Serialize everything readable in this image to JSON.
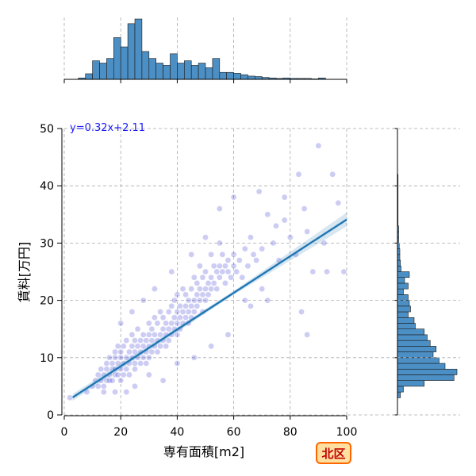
{
  "chart_data": {
    "type": "scatter",
    "xlabel": "専有面積[m2]",
    "ylabel": "賃料[万円]",
    "xlim": [
      0,
      100
    ],
    "ylim": [
      0,
      50
    ],
    "x_ticks": [
      "0",
      "20",
      "40",
      "60",
      "80",
      "100"
    ],
    "y_ticks": [
      "0",
      "10",
      "20",
      "30",
      "40",
      "50"
    ],
    "grid": true,
    "annotation": "y=0.32x+2.11",
    "badge": "北区",
    "regression": {
      "slope": 0.32,
      "intercept": 2.11,
      "x_range": [
        3,
        100
      ]
    },
    "scatter_color": "#1a1acc",
    "regression_color": "#1f77b4",
    "histogram_color": "#4c8fc4",
    "badge_fill": "#ffe0a0",
    "badge_stroke": "#ff6600",
    "points": [
      [
        10,
        5
      ],
      [
        11,
        6
      ],
      [
        12,
        7
      ],
      [
        12,
        5
      ],
      [
        13,
        6
      ],
      [
        13,
        8
      ],
      [
        14,
        7
      ],
      [
        14,
        5
      ],
      [
        15,
        6
      ],
      [
        15,
        8
      ],
      [
        15,
        9
      ],
      [
        16,
        7
      ],
      [
        16,
        10
      ],
      [
        16,
        6
      ],
      [
        17,
        8
      ],
      [
        17,
        9
      ],
      [
        17,
        6
      ],
      [
        18,
        7
      ],
      [
        18,
        10
      ],
      [
        18,
        11
      ],
      [
        18,
        8
      ],
      [
        19,
        9
      ],
      [
        19,
        7
      ],
      [
        19,
        12
      ],
      [
        20,
        8
      ],
      [
        20,
        10
      ],
      [
        20,
        6
      ],
      [
        20,
        11
      ],
      [
        21,
        9
      ],
      [
        21,
        12
      ],
      [
        21,
        7
      ],
      [
        22,
        10
      ],
      [
        22,
        8
      ],
      [
        22,
        13
      ],
      [
        23,
        11
      ],
      [
        23,
        9
      ],
      [
        23,
        7
      ],
      [
        24,
        10
      ],
      [
        24,
        12
      ],
      [
        24,
        14
      ],
      [
        25,
        9
      ],
      [
        25,
        11
      ],
      [
        25,
        13
      ],
      [
        25,
        8
      ],
      [
        26,
        10
      ],
      [
        26,
        12
      ],
      [
        26,
        15
      ],
      [
        27,
        11
      ],
      [
        27,
        9
      ],
      [
        27,
        13
      ],
      [
        28,
        12
      ],
      [
        28,
        10
      ],
      [
        28,
        14
      ],
      [
        29,
        11
      ],
      [
        29,
        13
      ],
      [
        29,
        9
      ],
      [
        30,
        12
      ],
      [
        30,
        14
      ],
      [
        30,
        10
      ],
      [
        30,
        16
      ],
      [
        31,
        13
      ],
      [
        31,
        11
      ],
      [
        31,
        15
      ],
      [
        32,
        12
      ],
      [
        32,
        14
      ],
      [
        32,
        17
      ],
      [
        33,
        13
      ],
      [
        33,
        11
      ],
      [
        33,
        16
      ],
      [
        34,
        14
      ],
      [
        34,
        12
      ],
      [
        34,
        18
      ],
      [
        35,
        15
      ],
      [
        35,
        13
      ],
      [
        35,
        17
      ],
      [
        36,
        14
      ],
      [
        36,
        16
      ],
      [
        36,
        12
      ],
      [
        37,
        15
      ],
      [
        37,
        18
      ],
      [
        37,
        13
      ],
      [
        38,
        16
      ],
      [
        38,
        14
      ],
      [
        38,
        19
      ],
      [
        39,
        17
      ],
      [
        39,
        15
      ],
      [
        39,
        20
      ],
      [
        40,
        16
      ],
      [
        40,
        18
      ],
      [
        40,
        14
      ],
      [
        40,
        21
      ],
      [
        41,
        17
      ],
      [
        41,
        19
      ],
      [
        41,
        15
      ],
      [
        42,
        18
      ],
      [
        42,
        16
      ],
      [
        42,
        22
      ],
      [
        43,
        19
      ],
      [
        43,
        17
      ],
      [
        43,
        21
      ],
      [
        44,
        18
      ],
      [
        44,
        20
      ],
      [
        44,
        16
      ],
      [
        45,
        19
      ],
      [
        45,
        22
      ],
      [
        45,
        17
      ],
      [
        46,
        20
      ],
      [
        46,
        18
      ],
      [
        46,
        24
      ],
      [
        47,
        21
      ],
      [
        47,
        19
      ],
      [
        47,
        23
      ],
      [
        48,
        20
      ],
      [
        48,
        22
      ],
      [
        48,
        26
      ],
      [
        49,
        21
      ],
      [
        49,
        24
      ],
      [
        49,
        18
      ],
      [
        50,
        22
      ],
      [
        50,
        20
      ],
      [
        50,
        25
      ],
      [
        51,
        23
      ],
      [
        51,
        21
      ],
      [
        52,
        24
      ],
      [
        52,
        22
      ],
      [
        52,
        28
      ],
      [
        53,
        23
      ],
      [
        53,
        26
      ],
      [
        54,
        25
      ],
      [
        54,
        22
      ],
      [
        55,
        26
      ],
      [
        55,
        24
      ],
      [
        55,
        30
      ],
      [
        56,
        25
      ],
      [
        56,
        28
      ],
      [
        57,
        26
      ],
      [
        57,
        23
      ],
      [
        58,
        27
      ],
      [
        58,
        25
      ],
      [
        59,
        24
      ],
      [
        60,
        26
      ],
      [
        60,
        28
      ],
      [
        61,
        25
      ],
      [
        62,
        27
      ],
      [
        63,
        24
      ],
      [
        64,
        29
      ],
      [
        65,
        26
      ],
      [
        66,
        31
      ],
      [
        67,
        28
      ],
      [
        68,
        27
      ],
      [
        70,
        29
      ],
      [
        72,
        35
      ],
      [
        74,
        30
      ],
      [
        75,
        33
      ],
      [
        76,
        27
      ],
      [
        78,
        34
      ],
      [
        80,
        31
      ],
      [
        82,
        28
      ],
      [
        83,
        42
      ],
      [
        85,
        36
      ],
      [
        86,
        32
      ],
      [
        88,
        25
      ],
      [
        90,
        47
      ],
      [
        92,
        30
      ],
      [
        95,
        42
      ],
      [
        97,
        37
      ],
      [
        99,
        25
      ],
      [
        86,
        14
      ],
      [
        84,
        18
      ],
      [
        72,
        20
      ],
      [
        64,
        20
      ],
      [
        58,
        14
      ],
      [
        52,
        12
      ],
      [
        46,
        10
      ],
      [
        40,
        9
      ],
      [
        35,
        6
      ],
      [
        30,
        7
      ],
      [
        25,
        5
      ],
      [
        22,
        4
      ],
      [
        18,
        4
      ],
      [
        14,
        4
      ],
      [
        2,
        3
      ],
      [
        8,
        4
      ],
      [
        60,
        38
      ],
      [
        69,
        39
      ],
      [
        78,
        38
      ],
      [
        93,
        25
      ],
      [
        50,
        31
      ],
      [
        55,
        36
      ],
      [
        66,
        19
      ],
      [
        70,
        22
      ],
      [
        45,
        28
      ],
      [
        38,
        25
      ],
      [
        32,
        22
      ],
      [
        28,
        20
      ],
      [
        24,
        18
      ],
      [
        20,
        16
      ]
    ],
    "x_histogram": {
      "bin_width": 2.5,
      "bin_start": 5,
      "counts": [
        3,
        12,
        40,
        35,
        45,
        90,
        70,
        120,
        130,
        60,
        45,
        35,
        30,
        55,
        35,
        40,
        30,
        35,
        25,
        45,
        15,
        15,
        13,
        10,
        7,
        6,
        4,
        3,
        2,
        3,
        2,
        2,
        2,
        1,
        3
      ]
    },
    "y_histogram": {
      "bin_width": 1,
      "bin_start": 3,
      "counts": [
        5,
        10,
        45,
        95,
        100,
        80,
        70,
        60,
        65,
        55,
        50,
        45,
        30,
        28,
        18,
        22,
        20,
        18,
        10,
        18,
        12,
        20,
        6,
        5,
        4,
        4,
        3,
        2,
        2,
        2,
        1,
        1,
        1,
        1,
        1,
        1,
        1,
        1,
        1
      ]
    }
  }
}
